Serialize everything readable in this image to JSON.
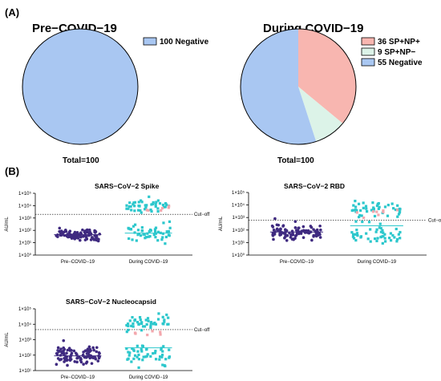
{
  "panel_labels": [
    "(A)",
    "(B)"
  ],
  "colors": {
    "negative": "#a9c7f2",
    "sp_np_pos": "#f8b6b0",
    "sp_pos_np_neg": "#dcf3e8",
    "pre_dots": "#3f2a80",
    "during_dots": "#2cc7cc",
    "positive_dots": "#f3a7ad"
  },
  "chart_data": [
    {
      "type": "pie",
      "title": "Pre−COVID−19",
      "total_label": "Total=100",
      "slices": [
        {
          "label": "100 Negative",
          "value": 100,
          "color": "#a9c7f2"
        }
      ]
    },
    {
      "type": "pie",
      "title": "During COVID−19",
      "total_label": "Total=100",
      "slices": [
        {
          "label": "36 SP+NP+",
          "value": 36,
          "color": "#f8b6b0"
        },
        {
          "label": "9 SP+NP−",
          "value": 9,
          "color": "#dcf3e8"
        },
        {
          "label": "55 Negative",
          "value": 55,
          "color": "#a9c7f2"
        }
      ]
    },
    {
      "type": "scatter",
      "title": "SARS−CoV−2 Spike",
      "ylabel": "AU/mL",
      "yscale": "log",
      "ylim": [
        1,
        100000
      ],
      "yticks": [
        "1×10⁰",
        "1×10¹",
        "1×10²",
        "1×10³",
        "1×10⁴",
        "1×10⁵"
      ],
      "categories": [
        "Pre−COVID−19",
        "During COVID−19"
      ],
      "cutoff": 2000,
      "cutoff_label": "Cut−off",
      "groups": [
        {
          "category": "Pre−COVID−19",
          "n": 100,
          "center": 45,
          "spread": 0.26,
          "bands": [],
          "mean": 45
        },
        {
          "category": "During COVID−19",
          "n": 100,
          "center": 60,
          "spread": 0.35,
          "bands": [
            {
              "count": 45,
              "center": 9000,
              "spread": 0.3
            }
          ],
          "positive": {
            "count": 6,
            "center": 6000,
            "spread": 0.15
          },
          "mean": 60
        }
      ]
    },
    {
      "type": "scatter",
      "title": "SARS−CoV−2 RBD",
      "ylabel": "AU/mL",
      "yscale": "log",
      "ylim": [
        1,
        100000
      ],
      "yticks": [
        "1×10⁰",
        "1×10¹",
        "1×10²",
        "1×10³",
        "1×10⁴",
        "1×10⁵"
      ],
      "categories": [
        "Pre−COVID−19",
        "During COVID−19"
      ],
      "cutoff": 600,
      "cutoff_label": "Cut−o",
      "groups": [
        {
          "category": "Pre−COVID−19",
          "n": 100,
          "center": 70,
          "spread": 0.28,
          "bands": [],
          "mean": 70
        },
        {
          "category": "During COVID−19",
          "n": 100,
          "center": 55,
          "spread": 0.45,
          "bands": [
            {
              "count": 45,
              "center": 5000,
              "spread": 0.3
            }
          ],
          "positive": {
            "count": 8,
            "center": 3000,
            "spread": 0.15
          },
          "mean": 220
        }
      ]
    },
    {
      "type": "scatter",
      "title": "SARS−CoV−2 Nucleocapsid",
      "ylabel": "AU/mL",
      "yscale": "log",
      "ylim": [
        10,
        100000
      ],
      "yticks": [
        "1×10¹",
        "1×10²",
        "1×10³",
        "1×10⁴",
        "1×10⁵"
      ],
      "categories": [
        "Pre−COVID−19",
        "During COVID−19"
      ],
      "cutoff": 4500,
      "cutoff_label": "Cut−off",
      "groups": [
        {
          "category": "Pre−COVID−19",
          "n": 100,
          "center": 90,
          "spread": 0.3,
          "bands": [],
          "mean": 90
        },
        {
          "category": "During COVID−19",
          "n": 100,
          "center": 90,
          "spread": 0.4,
          "bands": [
            {
              "count": 45,
              "center": 12000,
              "spread": 0.25
            }
          ],
          "positive": {
            "count": 6,
            "center": 2500,
            "spread": 0.12
          },
          "mean": 300
        }
      ]
    }
  ]
}
